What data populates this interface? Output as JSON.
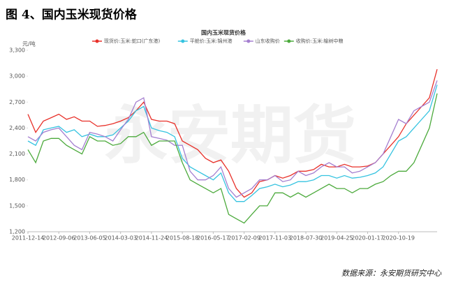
{
  "heading": "图 4、国内玉米现货价格",
  "source": "数据来源：永安期货研究中心",
  "watermark": "永安期货",
  "chart_data": {
    "type": "line",
    "title": "国内玉米现货价格",
    "y_label": "元/吨",
    "categories": [
      "2011-12-14",
      null,
      null,
      null,
      "2012-09-06",
      null,
      null,
      null,
      "2013-06-05",
      null,
      null,
      null,
      "2014-03-03",
      null,
      null,
      null,
      "2014-11-24",
      null,
      null,
      null,
      "2015-08-18",
      null,
      null,
      null,
      "2016-05-17",
      null,
      null,
      null,
      "2017-02-09",
      null,
      null,
      null,
      "2017-11-03",
      null,
      null,
      null,
      "2018-07-30",
      null,
      null,
      null,
      "2019-04-25",
      null,
      null,
      null,
      "2020-01-17",
      null,
      null,
      null,
      "2020-10-19",
      null,
      null,
      null,
      null,
      null
    ],
    "ylim": [
      1200,
      3300
    ],
    "yticks": [
      {
        "value": 1200,
        "label": "1,200"
      },
      {
        "value": 1500,
        "label": "1,500"
      },
      {
        "value": 1800,
        "label": "1,800"
      },
      {
        "value": 2100,
        "label": "2,100"
      },
      {
        "value": 2400,
        "label": "2,400"
      },
      {
        "value": 2700,
        "label": "2,700"
      },
      {
        "value": 3000,
        "label": "3,000"
      },
      {
        "value": 3300,
        "label": "3,300"
      }
    ],
    "grid": false,
    "series": [
      {
        "name": "现货价:玉米:蛇口(广东港)",
        "color": "#e8312a",
        "values": [
          2560,
          2350,
          2480,
          2520,
          2560,
          2500,
          2530,
          2480,
          2480,
          2420,
          2430,
          2450,
          2480,
          2520,
          2600,
          2700,
          2500,
          2480,
          2480,
          2450,
          2250,
          2200,
          2150,
          2050,
          2000,
          2030,
          1900,
          1700,
          1600,
          1650,
          1780,
          1800,
          1850,
          1820,
          1850,
          1900,
          1900,
          1920,
          1980,
          1950,
          1950,
          1980,
          1950,
          1950,
          1960,
          2000,
          2100,
          2200,
          2300,
          2450,
          2550,
          2650,
          2750,
          3080
        ]
      },
      {
        "name": "平舱价:玉米:锦州港",
        "color": "#35c3e0",
        "values": [
          2250,
          2200,
          2380,
          2400,
          2420,
          2350,
          2380,
          2300,
          2330,
          2300,
          2300,
          2320,
          2400,
          2480,
          2600,
          2650,
          2400,
          2370,
          2350,
          2300,
          2050,
          1950,
          1900,
          1850,
          1800,
          1880,
          1650,
          1550,
          1550,
          1620,
          1700,
          1720,
          1750,
          1720,
          1740,
          1780,
          1780,
          1800,
          1850,
          1850,
          1820,
          1850,
          1820,
          1830,
          1850,
          1880,
          1950,
          2100,
          2250,
          2300,
          2400,
          2500,
          2600,
          2900
        ]
      },
      {
        "name": "山东收购价",
        "color": "#a57fd0",
        "values": [
          2300,
          2250,
          2350,
          2380,
          2400,
          2300,
          2200,
          2150,
          2350,
          2330,
          2300,
          2250,
          2380,
          2500,
          2700,
          2750,
          2300,
          2280,
          2260,
          2200,
          2200,
          1900,
          1800,
          1800,
          1850,
          1950,
          1700,
          1600,
          1650,
          1700,
          1800,
          1800,
          1850,
          1780,
          1800,
          1900,
          1850,
          1880,
          1950,
          2000,
          1950,
          1950,
          1880,
          1900,
          1950,
          2000,
          2100,
          2300,
          2500,
          2450,
          2600,
          2650,
          2700,
          2950
        ]
      },
      {
        "name": "收购价:玉米:榆树中粮",
        "color": "#4caa3c",
        "values": [
          2150,
          2000,
          2250,
          2280,
          2280,
          2200,
          2150,
          2100,
          2300,
          2250,
          2250,
          2200,
          2220,
          2300,
          2300,
          2350,
          2200,
          2250,
          2250,
          2250,
          2000,
          1800,
          1750,
          1700,
          1650,
          1700,
          1400,
          1350,
          1300,
          1400,
          1500,
          1500,
          1650,
          1650,
          1600,
          1650,
          1600,
          1650,
          1700,
          1750,
          1700,
          1700,
          1650,
          1700,
          1700,
          1750,
          1780,
          1850,
          1900,
          1900,
          2000,
          2200,
          2400,
          2800
        ]
      }
    ]
  }
}
